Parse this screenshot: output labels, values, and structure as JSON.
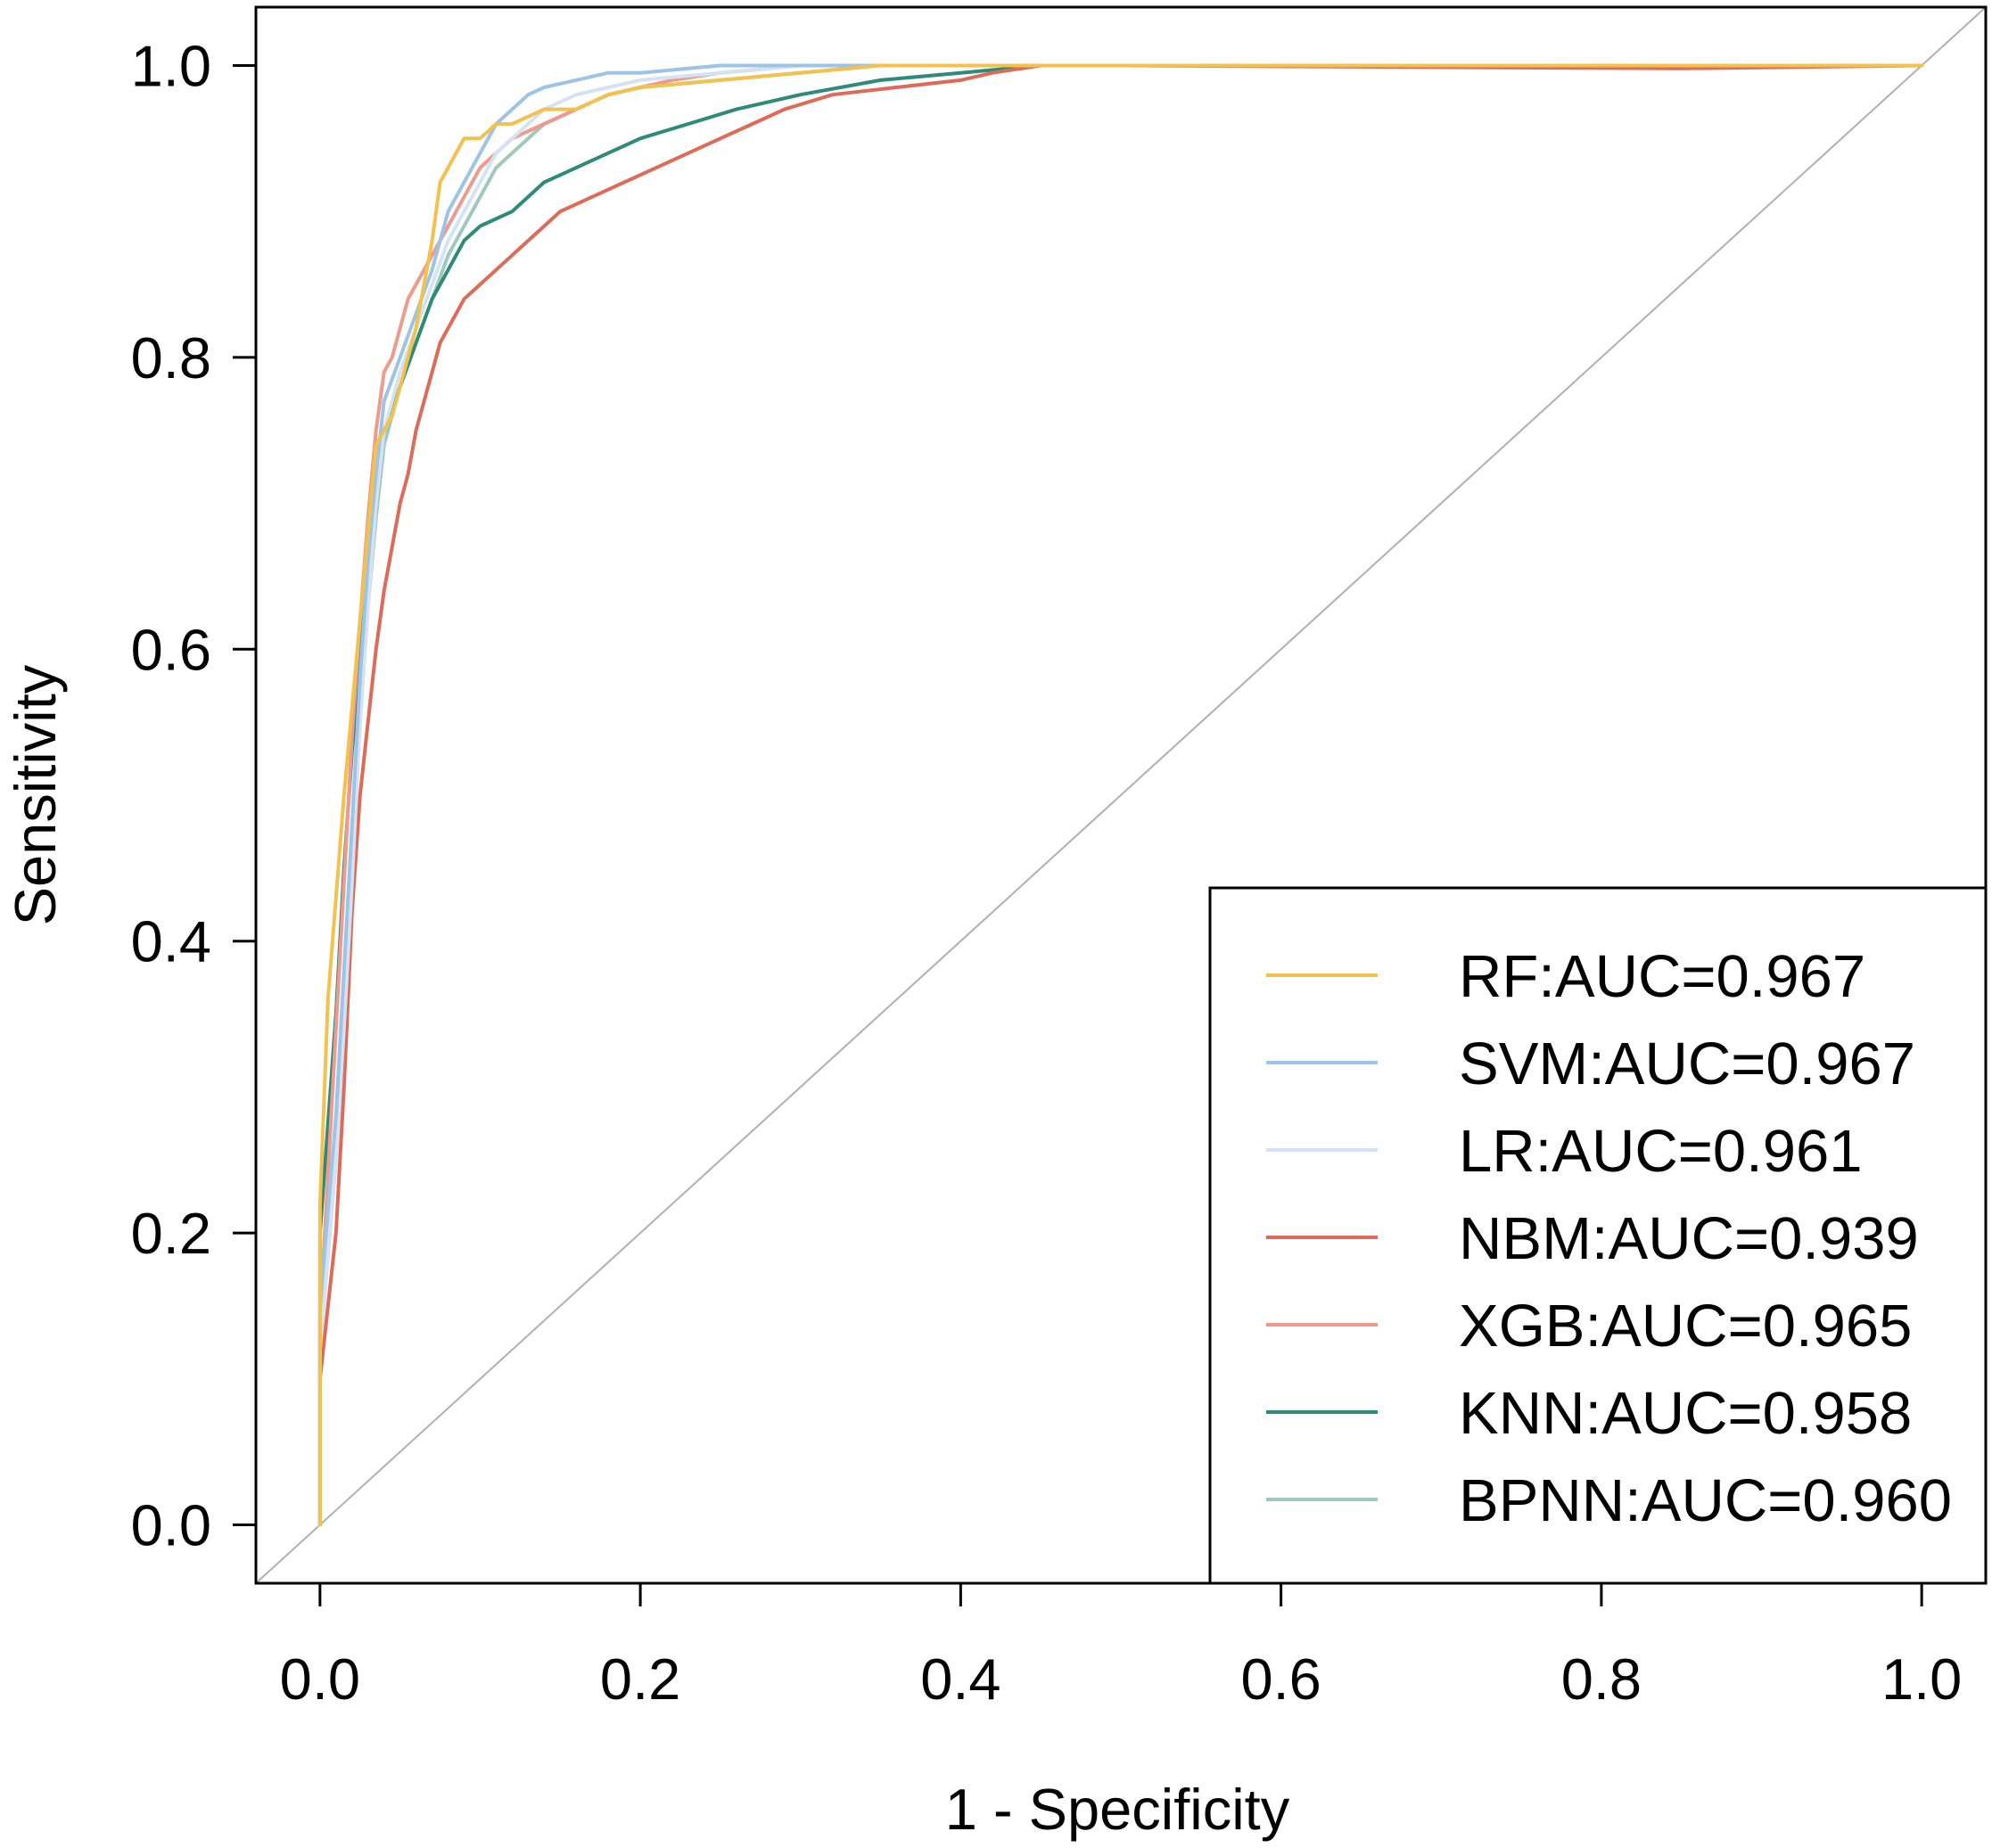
{
  "chart_data": {
    "type": "line",
    "title": "",
    "xlabel": "1 - Specificity",
    "ylabel": "Sensitivity",
    "xlim": [
      -0.04,
      1.04
    ],
    "ylim": [
      -0.04,
      1.04
    ],
    "x_ticks": [
      "0.0",
      "0.2",
      "0.4",
      "0.6",
      "0.8",
      "1.0"
    ],
    "y_ticks": [
      "0.0",
      "0.2",
      "0.4",
      "0.6",
      "0.8",
      "1.0"
    ],
    "grid": false,
    "legend_position": "bottom-right",
    "reference_line": {
      "name": "chance",
      "x": [
        0,
        1
      ],
      "y": [
        0,
        1
      ],
      "color": "#b0b0b0"
    },
    "series": [
      {
        "name": "RF",
        "label": "RF:AUC=0.967",
        "auc": 0.967,
        "color": "#f2c14e",
        "x": [
          0,
          0,
          0.005,
          0.01,
          0.015,
          0.02,
          0.025,
          0.03,
          0.035,
          0.04,
          0.045,
          0.05,
          0.055,
          0.06,
          0.065,
          0.07,
          0.075,
          0.08,
          0.085,
          0.09,
          0.1,
          0.11,
          0.12,
          0.14,
          0.16,
          0.18,
          0.2,
          0.25,
          0.3,
          0.35,
          0.5,
          1
        ],
        "y": [
          0,
          0.22,
          0.36,
          0.43,
          0.5,
          0.56,
          0.62,
          0.68,
          0.74,
          0.75,
          0.76,
          0.78,
          0.8,
          0.82,
          0.85,
          0.88,
          0.92,
          0.93,
          0.94,
          0.95,
          0.95,
          0.96,
          0.96,
          0.97,
          0.97,
          0.98,
          0.985,
          0.99,
          0.995,
          1,
          1,
          1
        ]
      },
      {
        "name": "SVM",
        "label": "SVM:AUC=0.967",
        "auc": 0.967,
        "color": "#9dc3e6",
        "x": [
          0,
          0,
          0.01,
          0.015,
          0.02,
          0.025,
          0.03,
          0.035,
          0.04,
          0.05,
          0.06,
          0.07,
          0.08,
          0.09,
          0.1,
          0.11,
          0.12,
          0.13,
          0.14,
          0.16,
          0.18,
          0.2,
          0.25,
          0.3,
          1
        ],
        "y": [
          0,
          0.15,
          0.28,
          0.38,
          0.48,
          0.58,
          0.66,
          0.72,
          0.77,
          0.8,
          0.83,
          0.86,
          0.9,
          0.92,
          0.94,
          0.96,
          0.97,
          0.98,
          0.985,
          0.99,
          0.995,
          0.995,
          1,
          1,
          1
        ]
      },
      {
        "name": "LR",
        "label": "LR:AUC=0.961",
        "auc": 0.961,
        "color": "#d4e3f3",
        "x": [
          0,
          0,
          0.01,
          0.015,
          0.02,
          0.025,
          0.03,
          0.035,
          0.04,
          0.05,
          0.06,
          0.07,
          0.08,
          0.09,
          0.1,
          0.11,
          0.12,
          0.14,
          0.16,
          0.18,
          0.2,
          0.25,
          0.3,
          0.35,
          1
        ],
        "y": [
          0,
          0.12,
          0.25,
          0.34,
          0.44,
          0.55,
          0.63,
          0.7,
          0.75,
          0.79,
          0.82,
          0.85,
          0.88,
          0.9,
          0.92,
          0.94,
          0.95,
          0.97,
          0.98,
          0.985,
          0.99,
          0.995,
          1,
          1,
          1
        ]
      },
      {
        "name": "NBM",
        "label": "NBM:AUC=0.939",
        "auc": 0.939,
        "color": "#de6b57",
        "x": [
          0,
          0,
          0.01,
          0.015,
          0.02,
          0.025,
          0.03,
          0.035,
          0.04,
          0.045,
          0.05,
          0.055,
          0.06,
          0.065,
          0.07,
          0.075,
          0.08,
          0.09,
          0.1,
          0.11,
          0.12,
          0.13,
          0.14,
          0.15,
          0.17,
          0.19,
          0.21,
          0.23,
          0.25,
          0.27,
          0.29,
          0.32,
          0.36,
          0.4,
          0.42,
          0.45,
          0.5,
          0.85,
          1
        ],
        "y": [
          0,
          0.1,
          0.2,
          0.3,
          0.42,
          0.5,
          0.55,
          0.6,
          0.64,
          0.67,
          0.7,
          0.72,
          0.75,
          0.77,
          0.79,
          0.81,
          0.82,
          0.84,
          0.85,
          0.86,
          0.87,
          0.88,
          0.89,
          0.9,
          0.91,
          0.92,
          0.93,
          0.94,
          0.95,
          0.96,
          0.97,
          0.98,
          0.985,
          0.99,
          0.995,
          1,
          1,
          0.998,
          1
        ]
      },
      {
        "name": "XGB",
        "label": "XGB:AUC=0.965",
        "auc": 0.965,
        "color": "#ee9a8c",
        "x": [
          0,
          0,
          0.005,
          0.01,
          0.015,
          0.02,
          0.025,
          0.03,
          0.035,
          0.04,
          0.045,
          0.05,
          0.055,
          0.06,
          0.07,
          0.08,
          0.09,
          0.1,
          0.11,
          0.12,
          0.14,
          0.16,
          0.18,
          0.2,
          0.22,
          0.25,
          0.3,
          0.35,
          1
        ],
        "y": [
          0,
          0.14,
          0.24,
          0.34,
          0.44,
          0.54,
          0.62,
          0.69,
          0.75,
          0.79,
          0.8,
          0.82,
          0.84,
          0.85,
          0.87,
          0.89,
          0.91,
          0.93,
          0.94,
          0.95,
          0.96,
          0.97,
          0.98,
          0.985,
          0.99,
          0.995,
          1,
          1,
          1
        ]
      },
      {
        "name": "KNN",
        "label": "KNN:AUC=0.958",
        "auc": 0.958,
        "color": "#2e8b7a",
        "x": [
          0,
          0,
          0.01,
          0.015,
          0.02,
          0.025,
          0.03,
          0.035,
          0.04,
          0.05,
          0.06,
          0.07,
          0.08,
          0.09,
          0.1,
          0.12,
          0.14,
          0.16,
          0.18,
          0.2,
          0.23,
          0.26,
          0.3,
          0.35,
          0.4,
          0.45,
          1
        ],
        "y": [
          0,
          0.2,
          0.35,
          0.45,
          0.53,
          0.59,
          0.66,
          0.71,
          0.75,
          0.78,
          0.81,
          0.84,
          0.86,
          0.88,
          0.89,
          0.9,
          0.92,
          0.93,
          0.94,
          0.95,
          0.96,
          0.97,
          0.98,
          0.99,
          0.995,
          1,
          1
        ]
      },
      {
        "name": "BPNN",
        "label": "BPNN:AUC=0.960",
        "auc": 0.96,
        "color": "#9fc9bd",
        "x": [
          0,
          0,
          0.01,
          0.015,
          0.02,
          0.025,
          0.03,
          0.035,
          0.04,
          0.05,
          0.06,
          0.07,
          0.08,
          0.09,
          0.1,
          0.11,
          0.12,
          0.14,
          0.16,
          0.18,
          0.2,
          0.25,
          0.3,
          0.35,
          1
        ],
        "y": [
          0,
          0.12,
          0.25,
          0.35,
          0.45,
          0.55,
          0.63,
          0.69,
          0.74,
          0.78,
          0.81,
          0.84,
          0.87,
          0.89,
          0.91,
          0.93,
          0.94,
          0.96,
          0.97,
          0.98,
          0.985,
          0.99,
          0.995,
          1,
          1
        ]
      }
    ]
  }
}
